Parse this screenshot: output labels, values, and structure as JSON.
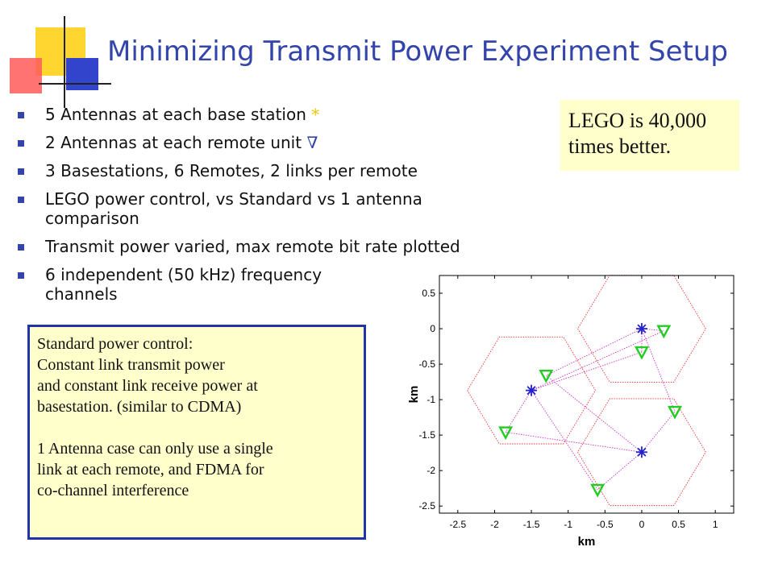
{
  "slide": {
    "title": "Minimizing Transmit Power Experiment Setup",
    "bullets": [
      {
        "text": "5 Antennas at each base station ",
        "symbol": "*"
      },
      {
        "text": "2 Antennas at each remote unit ",
        "symbol": "∇"
      },
      {
        "text": "3 Basestations, 6 Remotes, 2 links per remote"
      },
      {
        "text": "LEGO power control, vs Standard vs 1 antenna comparison"
      },
      {
        "text": "Transmit power varied, max remote bit rate plotted"
      },
      {
        "text": "6 independent (50 kHz) frequency channels"
      }
    ],
    "lego_note": {
      "line1": "LEGO is 40,000",
      "line2": "times better."
    },
    "standard_note": {
      "lines_a": [
        "Standard power control:",
        "Constant link transmit power",
        "and constant link receive power at",
        "basestation. (similar to CDMA)"
      ],
      "lines_b": [
        "1 Antenna case can only use a single",
        "link at each remote, and FDMA for",
        "co-channel interference"
      ]
    },
    "colors": {
      "title": "#3344aa",
      "bullet": "#3344aa",
      "note_bg": "#ffffcc",
      "box_border": "#2233aa"
    }
  },
  "chart_data": {
    "type": "scatter",
    "xlabel": "km",
    "ylabel": "km",
    "xlim": [
      -2.75,
      1.25
    ],
    "ylim": [
      -2.6,
      0.75
    ],
    "xticks": [
      -2.5,
      -2,
      -1.5,
      -1,
      -0.5,
      0,
      0.5,
      1
    ],
    "xtick_labels": [
      "-2.5",
      "-2",
      "-1.5",
      "-1",
      "-0.5",
      "0",
      "0.5",
      "1"
    ],
    "yticks": [
      0.5,
      0,
      -0.5,
      -1,
      -1.5,
      -2,
      -2.5
    ],
    "ytick_labels": [
      "0.5",
      "0",
      "-0.5",
      "-1",
      "-1.5",
      "-2",
      "-2.5"
    ],
    "cells": [
      {
        "center": [
          0,
          0
        ],
        "radius": 0.87
      },
      {
        "center": [
          -1.5,
          -0.87
        ],
        "radius": 0.87
      },
      {
        "center": [
          0,
          -1.74
        ],
        "radius": 0.87
      }
    ],
    "base_stations": [
      [
        0,
        0
      ],
      [
        -1.5,
        -0.87
      ],
      [
        0,
        -1.74
      ]
    ],
    "remotes": [
      [
        0.3,
        -0.03
      ],
      [
        0,
        -0.33
      ],
      [
        -1.3,
        -0.66
      ],
      [
        0.45,
        -1.17
      ],
      [
        -1.85,
        -1.46
      ],
      [
        -0.6,
        -2.27
      ]
    ],
    "links": [
      [
        [
          0,
          0
        ],
        [
          0.3,
          -0.03
        ]
      ],
      [
        [
          0,
          0
        ],
        [
          0,
          -0.33
        ]
      ],
      [
        [
          0,
          0
        ],
        [
          -1.3,
          -0.66
        ]
      ],
      [
        [
          0,
          0
        ],
        [
          0.45,
          -1.17
        ]
      ],
      [
        [
          -1.5,
          -0.87
        ],
        [
          0,
          -0.33
        ]
      ],
      [
        [
          -1.5,
          -0.87
        ],
        [
          -1.85,
          -1.46
        ]
      ],
      [
        [
          -1.5,
          -0.87
        ],
        [
          0.3,
          -0.03
        ]
      ],
      [
        [
          0,
          -1.74
        ],
        [
          -1.3,
          -0.66
        ]
      ],
      [
        [
          0,
          -1.74
        ],
        [
          0.45,
          -1.17
        ]
      ],
      [
        [
          0,
          -1.74
        ],
        [
          -1.85,
          -1.46
        ]
      ],
      [
        [
          0,
          -1.74
        ],
        [
          -0.6,
          -2.27
        ]
      ],
      [
        [
          -1.5,
          -0.87
        ],
        [
          -0.6,
          -2.27
        ]
      ]
    ],
    "colors": {
      "cells": "#ee3333",
      "links": "#cc33cc",
      "base_stations": "#2222cc",
      "remotes": "#22cc22"
    },
    "grid": false
  }
}
